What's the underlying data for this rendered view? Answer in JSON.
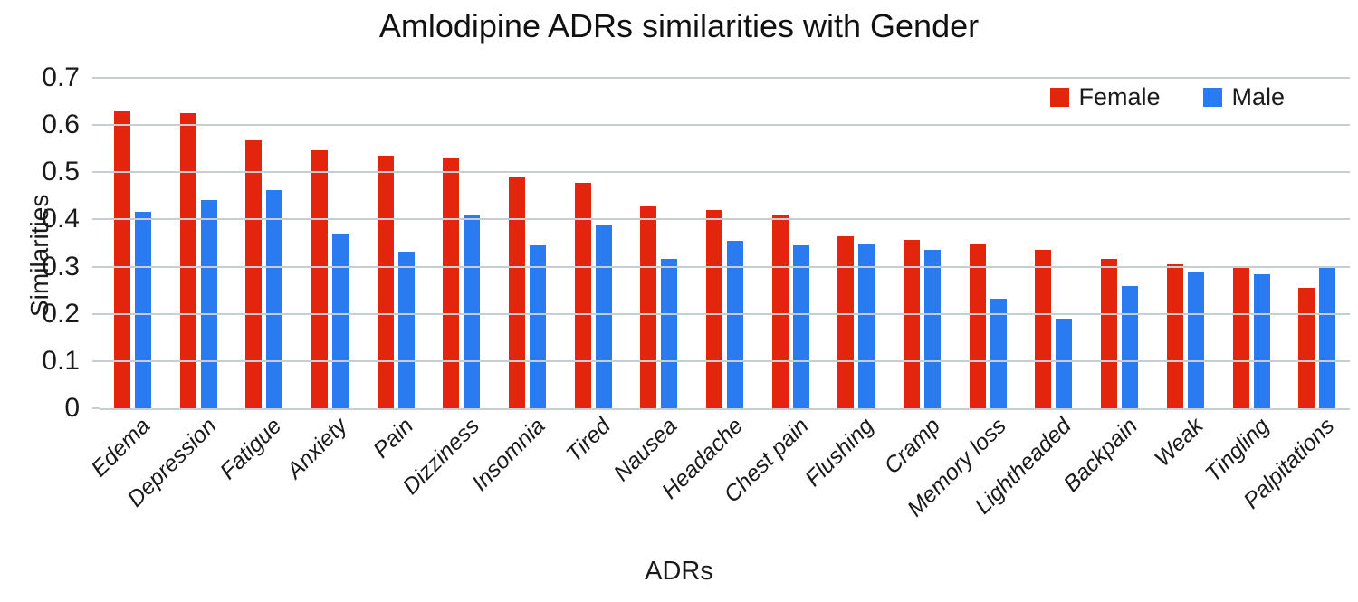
{
  "colors": {
    "female": "#e2250c",
    "male": "#2b7bf0",
    "gridline": "#c6cfcf",
    "text": "#1a1a1a"
  },
  "chart_data": {
    "type": "bar",
    "title": "Amlodipine ADRs similarities with Gender",
    "xlabel": "ADRs",
    "ylabel": "Similarities",
    "ylim": [
      0,
      0.7
    ],
    "yticks": [
      0,
      0.1,
      0.2,
      0.3,
      0.4,
      0.5,
      0.6,
      0.7
    ],
    "ytick_labels": [
      "0",
      "0.1",
      "0.2",
      "0.3",
      "0.4",
      "0.5",
      "0.6",
      "0.7"
    ],
    "grid": true,
    "legend_position": "top-right",
    "categories": [
      "Edema",
      "Depression",
      "Fatigue",
      "Anxiety",
      "Pain",
      "Dizziness",
      "Insomnia",
      "Tired",
      "Nausea",
      "Headache",
      "Chest pain",
      "Flushing",
      "Cramp",
      "Memory loss",
      "Lightheaded",
      "Backpain",
      "Weak",
      "Tingling",
      "Palpitations"
    ],
    "series": [
      {
        "name": "Female",
        "color": "#e2250c",
        "values": [
          0.63,
          0.626,
          0.567,
          0.546,
          0.535,
          0.532,
          0.49,
          0.477,
          0.427,
          0.42,
          0.411,
          0.364,
          0.357,
          0.348,
          0.336,
          0.317,
          0.305,
          0.301,
          0.255
        ]
      },
      {
        "name": "Male",
        "color": "#2b7bf0",
        "values": [
          0.417,
          0.442,
          0.463,
          0.37,
          0.332,
          0.41,
          0.345,
          0.39,
          0.317,
          0.355,
          0.345,
          0.349,
          0.336,
          0.233,
          0.19,
          0.258,
          0.289,
          0.283,
          0.297
        ]
      }
    ]
  }
}
